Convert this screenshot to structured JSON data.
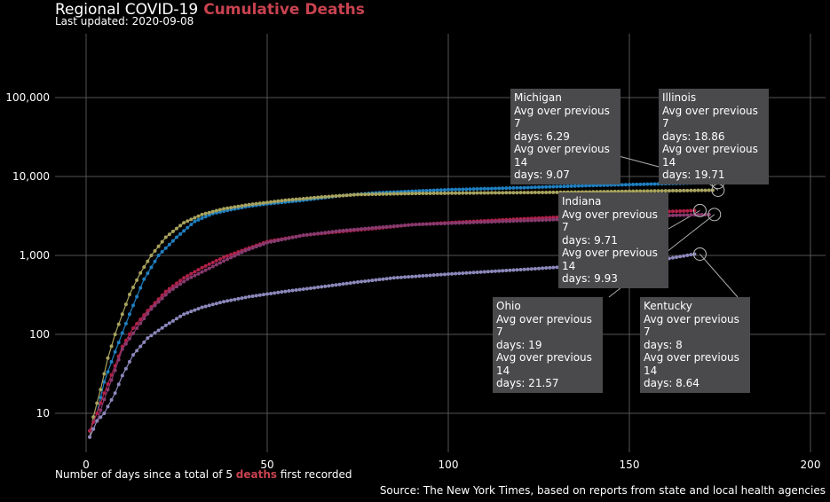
{
  "header": {
    "title_main": "Regional COVID-19",
    "title_accent": "Cumulative Deaths",
    "subtitle": "Last updated: 2020-09-08"
  },
  "footer": {
    "xlabel_pre": "Number of days since a total of 5",
    "xlabel_accent": "deaths",
    "xlabel_post": "first recorded",
    "source": "Source: The New York Times, based on reports from state and local health agencies"
  },
  "colors": {
    "background": "#000000",
    "accent": "#c8424f",
    "grid": "#555555",
    "tooltip_bg": "#4a4a4c"
  },
  "chart_data": {
    "type": "line",
    "x_scale": "linear",
    "y_scale": "log",
    "xlim": [
      -8,
      203
    ],
    "ylim": [
      3,
      700000
    ],
    "x_ticks": [
      0,
      50,
      100,
      150,
      200
    ],
    "y_ticks": [
      10,
      100,
      1000,
      10000,
      100000
    ],
    "y_tick_labels": [
      "10",
      "100",
      "1,000",
      "10,000",
      "100,000"
    ],
    "grid": true,
    "series": [
      {
        "name": "Michigan",
        "color": "#1f7fc0",
        "final_day": 173,
        "points": [
          [
            1,
            6
          ],
          [
            3,
            10
          ],
          [
            5,
            25
          ],
          [
            8,
            60
          ],
          [
            12,
            180
          ],
          [
            16,
            500
          ],
          [
            20,
            1000
          ],
          [
            25,
            1700
          ],
          [
            30,
            2700
          ],
          [
            35,
            3400
          ],
          [
            40,
            3800
          ],
          [
            45,
            4200
          ],
          [
            50,
            4500
          ],
          [
            60,
            5000
          ],
          [
            70,
            5700
          ],
          [
            80,
            6200
          ],
          [
            90,
            6500
          ],
          [
            100,
            6800
          ],
          [
            120,
            7200
          ],
          [
            140,
            7700
          ],
          [
            160,
            8100
          ],
          [
            173,
            8400
          ]
        ]
      },
      {
        "name": "Illinois",
        "color": "#a8a35e",
        "final_day": 173,
        "points": [
          [
            1,
            5
          ],
          [
            2,
            9
          ],
          [
            4,
            20
          ],
          [
            6,
            50
          ],
          [
            8,
            100
          ],
          [
            10,
            180
          ],
          [
            12,
            320
          ],
          [
            15,
            600
          ],
          [
            18,
            1000
          ],
          [
            22,
            1700
          ],
          [
            27,
            2600
          ],
          [
            32,
            3300
          ],
          [
            38,
            3900
          ],
          [
            45,
            4400
          ],
          [
            55,
            5000
          ],
          [
            65,
            5500
          ],
          [
            75,
            5900
          ],
          [
            90,
            6100
          ],
          [
            110,
            6200
          ],
          [
            130,
            6300
          ],
          [
            150,
            6500
          ],
          [
            173,
            6700
          ]
        ]
      },
      {
        "name": "Indiana",
        "color": "#b02048",
        "final_day": 168,
        "points": [
          [
            1,
            6
          ],
          [
            3,
            10
          ],
          [
            5,
            18
          ],
          [
            8,
            40
          ],
          [
            10,
            70
          ],
          [
            13,
            120
          ],
          [
            17,
            200
          ],
          [
            22,
            350
          ],
          [
            27,
            520
          ],
          [
            32,
            700
          ],
          [
            38,
            950
          ],
          [
            44,
            1200
          ],
          [
            50,
            1500
          ],
          [
            60,
            1800
          ],
          [
            70,
            2000
          ],
          [
            80,
            2200
          ],
          [
            90,
            2450
          ],
          [
            100,
            2600
          ],
          [
            120,
            2900
          ],
          [
            140,
            3200
          ],
          [
            160,
            3600
          ],
          [
            168,
            3700
          ]
        ]
      },
      {
        "name": "Ohio",
        "color": "#873a6e",
        "final_day": 172,
        "points": [
          [
            1,
            5
          ],
          [
            3,
            8
          ],
          [
            5,
            15
          ],
          [
            8,
            35
          ],
          [
            10,
            65
          ],
          [
            14,
            120
          ],
          [
            18,
            210
          ],
          [
            23,
            350
          ],
          [
            28,
            500
          ],
          [
            33,
            650
          ],
          [
            38,
            850
          ],
          [
            44,
            1150
          ],
          [
            50,
            1450
          ],
          [
            60,
            1800
          ],
          [
            70,
            2050
          ],
          [
            80,
            2250
          ],
          [
            90,
            2450
          ],
          [
            100,
            2550
          ],
          [
            120,
            2750
          ],
          [
            140,
            2950
          ],
          [
            160,
            3200
          ],
          [
            172,
            3300
          ]
        ]
      },
      {
        "name": "Kentucky",
        "color": "#8c88bb",
        "final_day": 168,
        "points": [
          [
            1,
            5
          ],
          [
            3,
            8
          ],
          [
            5,
            10
          ],
          [
            8,
            18
          ],
          [
            10,
            30
          ],
          [
            13,
            55
          ],
          [
            17,
            90
          ],
          [
            22,
            130
          ],
          [
            27,
            180
          ],
          [
            32,
            220
          ],
          [
            38,
            260
          ],
          [
            45,
            300
          ],
          [
            55,
            350
          ],
          [
            65,
            400
          ],
          [
            75,
            460
          ],
          [
            85,
            520
          ],
          [
            100,
            580
          ],
          [
            120,
            660
          ],
          [
            140,
            760
          ],
          [
            160,
            900
          ],
          [
            168,
            1040
          ]
        ]
      }
    ],
    "tooltips": [
      {
        "name": "Michigan",
        "line1": "Avg over previous 7",
        "line2": "days: 6.29",
        "line3": "Avg over previous 14",
        "line4": "days: 9.07"
      },
      {
        "name": "Illinois",
        "line1": "Avg over previous 7",
        "line2": "days: 18.86",
        "line3": "Avg over previous 14",
        "line4": "days: 19.71"
      },
      {
        "name": "Indiana",
        "line1": "Avg over previous 7",
        "line2": "days: 9.71",
        "line3": "Avg over previous 14",
        "line4": "days: 9.93"
      },
      {
        "name": "Ohio",
        "line1": "Avg over previous 7",
        "line2": "days: 19",
        "line3": "Avg over previous 14",
        "line4": "days: 21.57"
      },
      {
        "name": "Kentucky",
        "line1": "Avg over previous 7",
        "line2": "days: 8",
        "line3": "Avg over previous 14",
        "line4": "days: 8.64"
      }
    ]
  }
}
